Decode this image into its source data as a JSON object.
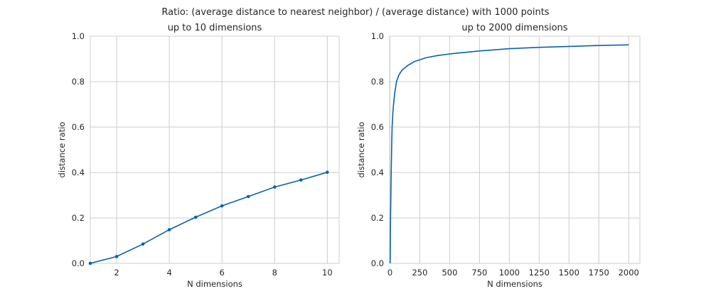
{
  "suptitle": "Ratio: (average distance to nearest neighbor) / (average distance) with 1000 points",
  "chart_data": [
    {
      "type": "line",
      "title": "up to 10 dimensions",
      "xlabel": "N dimensions",
      "ylabel": "distance ratio",
      "xlim": [
        1,
        10.45
      ],
      "ylim": [
        0,
        1
      ],
      "xticks": [
        2,
        4,
        6,
        8,
        10
      ],
      "xtick_labels": [
        "2",
        "4",
        "6",
        "8",
        "10"
      ],
      "yticks": [
        0,
        0.2,
        0.4,
        0.6,
        0.8,
        1.0
      ],
      "ytick_labels": [
        "0.0",
        "0.2",
        "0.4",
        "0.6",
        "0.8",
        "1.0"
      ],
      "grid": true,
      "markers": true,
      "color": "#0b62a8",
      "x": [
        1,
        2,
        3,
        4,
        5,
        6,
        7,
        8,
        9,
        10
      ],
      "y": [
        0.0,
        0.03,
        0.085,
        0.148,
        0.203,
        0.253,
        0.294,
        0.336,
        0.367,
        0.401
      ]
    },
    {
      "type": "line",
      "title": "up to 2000 dimensions",
      "xlabel": "N dimensions",
      "ylabel": "distance ratio",
      "xlim": [
        -3,
        2094
      ],
      "ylim": [
        0,
        1
      ],
      "xticks": [
        0,
        250,
        500,
        750,
        1000,
        1250,
        1500,
        1750,
        2000
      ],
      "xtick_labels": [
        "0",
        "250",
        "500",
        "750",
        "1000",
        "1250",
        "1500",
        "1750",
        "2000"
      ],
      "yticks": [
        0,
        0.2,
        0.4,
        0.6,
        0.8,
        1.0
      ],
      "ytick_labels": [
        "0.0",
        "0.2",
        "0.4",
        "0.6",
        "0.8",
        "1.0"
      ],
      "grid": true,
      "markers": false,
      "color": "#0b62a8",
      "x": [
        1,
        2,
        3,
        5,
        7,
        10,
        14,
        18,
        24,
        30,
        40,
        55,
        75,
        100,
        150,
        205,
        300,
        400,
        500,
        750,
        1000,
        1250,
        1500,
        1750,
        2000
      ],
      "y": [
        0.0,
        0.03,
        0.085,
        0.2,
        0.29,
        0.4,
        0.52,
        0.6,
        0.66,
        0.7,
        0.75,
        0.8,
        0.83,
        0.85,
        0.872,
        0.888,
        0.905,
        0.915,
        0.922,
        0.935,
        0.945,
        0.951,
        0.955,
        0.959,
        0.962
      ]
    }
  ]
}
